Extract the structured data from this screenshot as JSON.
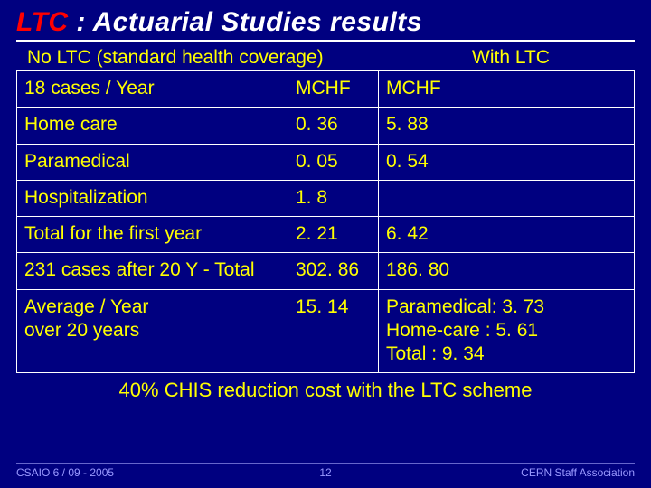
{
  "slide": {
    "title_ltc": "LTC",
    "title_rest": " : Actuarial Studies results",
    "col_header_left": "No LTC (standard health coverage)",
    "col_header_right": "With LTC",
    "summary": "40% CHIS reduction cost with the LTC scheme",
    "background_color": "#000080",
    "text_color": "#ffff00",
    "title_color": "#ffffff",
    "ltc_color": "#ff0000",
    "border_color": "#ffffff"
  },
  "table": {
    "rows": [
      {
        "c1": "18 cases / Year",
        "c2": "MCHF",
        "c3": "MCHF"
      },
      {
        "c1": "Home care",
        "c2": "0. 36",
        "c3": "5. 88"
      },
      {
        "c1": "Paramedical",
        "c2": "0. 05",
        "c3": "0. 54"
      },
      {
        "c1": "Hospitalization",
        "c2": "1. 8",
        "c3": ""
      },
      {
        "c1": "Total for the first year",
        "c2": "2. 21",
        "c3": "6. 42"
      },
      {
        "c1": "231 cases after 20 Y - Total",
        "c2": "302. 86",
        "c3": "186. 80"
      },
      {
        "c1": "Average / Year\nover 20 years",
        "c2": "15. 14",
        "c3": "Paramedical: 3. 73\nHome-care  : 5. 61\nTotal           : 9. 34"
      }
    ]
  },
  "footer": {
    "left": "CSAIO 6 / 09 - 2005",
    "page": "12",
    "right": "CERN Staff Association",
    "line_color": "#6666cc",
    "text_color": "#9999ff"
  }
}
